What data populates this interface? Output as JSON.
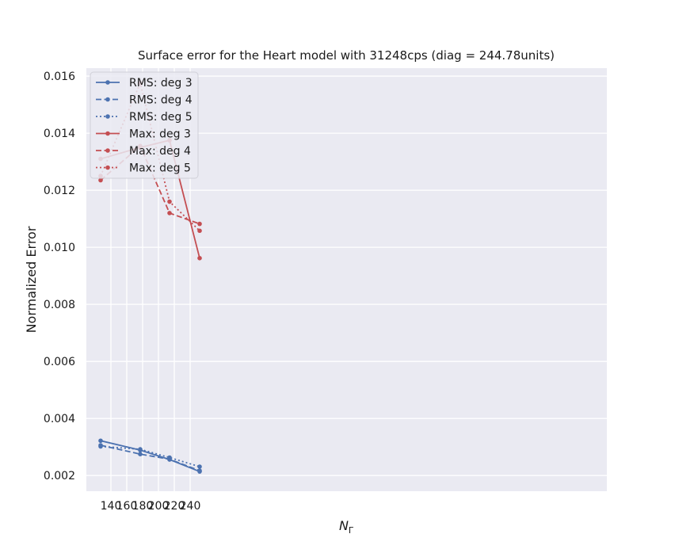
{
  "chart_data": {
    "type": "line",
    "title": "Surface error for the Heart model with 31248cps (diag = 244.78units)",
    "xlabel": "N",
    "xlabel_sub": "Γ",
    "ylabel": "Normalized Error",
    "x": [
      127,
      177,
      214,
      252
    ],
    "xlim": [
      109,
      766
    ],
    "ylim": [
      0.00145,
      0.01628
    ],
    "xticks": [
      140,
      160,
      180,
      200,
      220,
      240
    ],
    "xtick_labels": [
      "140",
      "160",
      "180",
      "200",
      "220",
      "240"
    ],
    "yticks": [
      0.002,
      0.004,
      0.006,
      0.008,
      0.01,
      0.012,
      0.014,
      0.016
    ],
    "ytick_labels": [
      "0.002",
      "0.004",
      "0.006",
      "0.008",
      "0.010",
      "0.012",
      "0.014",
      "0.016"
    ],
    "grid": true,
    "legend_position": "top-left",
    "series": [
      {
        "name": "RMS: deg 3",
        "color": "#4c72b0",
        "linestyle": "solid",
        "values": [
          0.00322,
          0.00289,
          0.00256,
          0.00214
        ]
      },
      {
        "name": "RMS: deg 4",
        "color": "#4c72b0",
        "linestyle": "dashed",
        "values": [
          0.00306,
          0.00275,
          0.00257,
          0.00217
        ]
      },
      {
        "name": "RMS: deg 5",
        "color": "#4c72b0",
        "linestyle": "dotted",
        "values": [
          0.00302,
          0.00292,
          0.00263,
          0.00231
        ]
      },
      {
        "name": "Max: deg 3",
        "color": "#c44e52",
        "linestyle": "solid",
        "values": [
          0.0131,
          0.0135,
          0.01375,
          0.00962
        ]
      },
      {
        "name": "Max: deg 4",
        "color": "#c44e52",
        "linestyle": "dashed",
        "values": [
          0.01235,
          0.01355,
          0.0112,
          0.01082
        ]
      },
      {
        "name": "Max: deg 5",
        "color": "#c44e52",
        "linestyle": "dotted",
        "values": [
          0.0125,
          0.01575,
          0.0116,
          0.01058
        ]
      }
    ]
  }
}
